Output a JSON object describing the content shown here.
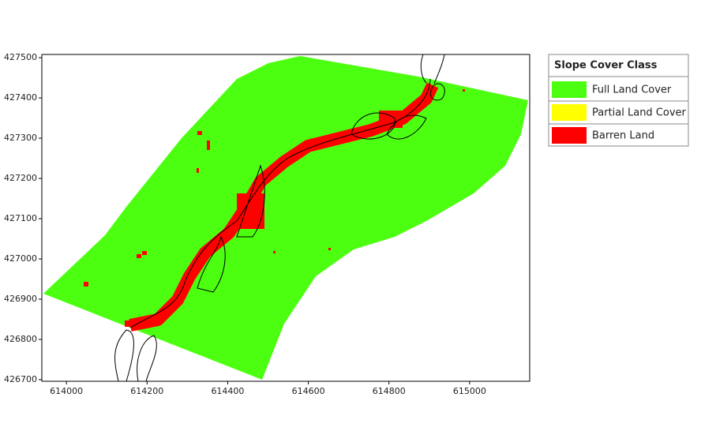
{
  "chart_data": {
    "type": "map",
    "xlim": [
      613939,
      615149
    ],
    "ylim": [
      426696,
      427508
    ],
    "xticks": [
      614000,
      614200,
      614400,
      614600,
      614800,
      615000
    ],
    "yticks": [
      426700,
      426800,
      426900,
      427000,
      427100,
      427200,
      427300,
      427400,
      427500
    ],
    "legend": {
      "title": "Slope Cover Class",
      "position": "outside-right",
      "items": [
        {
          "name": "Full Land Cover",
          "color": "#4cff10"
        },
        {
          "name": "Partial Land Cover",
          "color": "#ffff00"
        },
        {
          "name": "Barren Land",
          "color": "#ff0000"
        }
      ]
    }
  }
}
